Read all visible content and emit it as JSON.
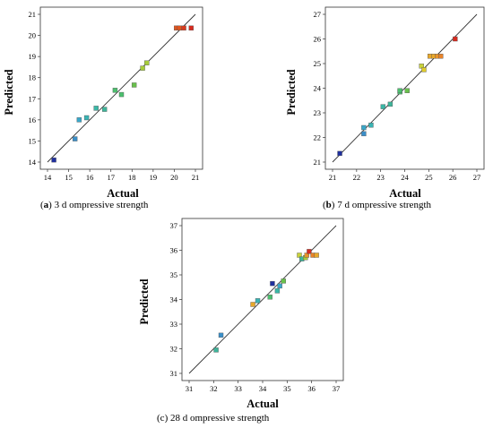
{
  "chart_data": [
    {
      "type": "scatter",
      "caption_prefix": "(",
      "caption_letter": "a",
      "caption_text": ") 3 d ompressive strength",
      "caption_letter_bold": true,
      "xlabel": "Actual",
      "ylabel": "Predicted",
      "xlim": [
        14,
        21
      ],
      "ylim": [
        14,
        21
      ],
      "xticks": [
        "14",
        "15",
        "16",
        "17",
        "18",
        "19",
        "20",
        "21"
      ],
      "yticks": [
        "14",
        "15",
        "16",
        "17",
        "18",
        "19",
        "20",
        "21"
      ],
      "line": [
        [
          14,
          14
        ],
        [
          21,
          21
        ]
      ],
      "points": [
        {
          "x": 14.3,
          "y": 14.1,
          "color": "#1f2f9e"
        },
        {
          "x": 15.3,
          "y": 15.1,
          "color": "#3a8fc9"
        },
        {
          "x": 15.5,
          "y": 16.0,
          "color": "#39a7c9"
        },
        {
          "x": 15.85,
          "y": 16.1,
          "color": "#39b3b3"
        },
        {
          "x": 16.3,
          "y": 16.55,
          "color": "#3ab7a6"
        },
        {
          "x": 16.7,
          "y": 16.5,
          "color": "#3eb59a"
        },
        {
          "x": 17.2,
          "y": 17.4,
          "color": "#4cbf6e"
        },
        {
          "x": 17.5,
          "y": 17.2,
          "color": "#4cbf6e"
        },
        {
          "x": 18.1,
          "y": 17.65,
          "color": "#69c14c"
        },
        {
          "x": 18.5,
          "y": 18.45,
          "color": "#a6cc3a"
        },
        {
          "x": 18.7,
          "y": 18.7,
          "color": "#a6cc3a"
        },
        {
          "x": 20.1,
          "y": 20.35,
          "color": "#e0551f"
        },
        {
          "x": 20.25,
          "y": 20.35,
          "color": "#e0551f"
        },
        {
          "x": 20.45,
          "y": 20.35,
          "color": "#d73a1f"
        },
        {
          "x": 20.8,
          "y": 20.35,
          "color": "#d72a1f"
        }
      ]
    },
    {
      "type": "scatter",
      "caption_prefix": "(",
      "caption_letter": "b",
      "caption_text": ") 7 d ompressive strength",
      "caption_letter_bold": true,
      "xlabel": "Actual",
      "ylabel": "Predicted",
      "xlim": [
        21,
        27
      ],
      "ylim": [
        21,
        27
      ],
      "xticks": [
        "21",
        "22",
        "23",
        "24",
        "25",
        "26",
        "27"
      ],
      "yticks": [
        "21",
        "22",
        "23",
        "24",
        "25",
        "26",
        "27"
      ],
      "line": [
        [
          21,
          21
        ],
        [
          27,
          27
        ]
      ],
      "points": [
        {
          "x": 21.3,
          "y": 21.35,
          "color": "#1f2f9e"
        },
        {
          "x": 22.3,
          "y": 22.15,
          "color": "#3a8fc9"
        },
        {
          "x": 22.3,
          "y": 22.4,
          "color": "#39a7c9"
        },
        {
          "x": 22.6,
          "y": 22.5,
          "color": "#39b3b3"
        },
        {
          "x": 23.1,
          "y": 23.25,
          "color": "#3ab7a6"
        },
        {
          "x": 23.4,
          "y": 23.35,
          "color": "#3eb59a"
        },
        {
          "x": 23.8,
          "y": 23.85,
          "color": "#4cbf6e"
        },
        {
          "x": 23.8,
          "y": 23.9,
          "color": "#4cbf6e"
        },
        {
          "x": 24.1,
          "y": 23.9,
          "color": "#69c14c"
        },
        {
          "x": 24.7,
          "y": 24.9,
          "color": "#c9d23a"
        },
        {
          "x": 24.8,
          "y": 24.75,
          "color": "#e0cc2a"
        },
        {
          "x": 25.05,
          "y": 25.3,
          "color": "#e8a82a"
        },
        {
          "x": 25.2,
          "y": 25.3,
          "color": "#e8a82a"
        },
        {
          "x": 25.35,
          "y": 25.3,
          "color": "#e8942a"
        },
        {
          "x": 25.5,
          "y": 25.3,
          "color": "#e8842a"
        },
        {
          "x": 26.1,
          "y": 26.0,
          "color": "#d72a1f"
        }
      ]
    },
    {
      "type": "scatter",
      "caption_prefix": "(",
      "caption_letter": "c",
      "caption_text": ") 28 d ompressive strength",
      "caption_letter_bold": false,
      "xlabel": "Actual",
      "ylabel": "Predicted",
      "xlim": [
        31,
        37
      ],
      "ylim": [
        31,
        37
      ],
      "xticks": [
        "31",
        "32",
        "33",
        "34",
        "35",
        "36",
        "37"
      ],
      "yticks": [
        "31",
        "32",
        "33",
        "34",
        "35",
        "36",
        "37"
      ],
      "line": [
        [
          31,
          31
        ],
        [
          37,
          37
        ]
      ],
      "points": [
        {
          "x": 32.1,
          "y": 31.95,
          "color": "#3eb59a"
        },
        {
          "x": 32.3,
          "y": 32.55,
          "color": "#3a8fc9"
        },
        {
          "x": 33.6,
          "y": 33.8,
          "color": "#e8a82a"
        },
        {
          "x": 33.8,
          "y": 33.95,
          "color": "#39b3b3"
        },
        {
          "x": 34.3,
          "y": 34.1,
          "color": "#4cbf6e"
        },
        {
          "x": 34.4,
          "y": 34.65,
          "color": "#1f2f9e"
        },
        {
          "x": 34.6,
          "y": 34.35,
          "color": "#3ab7a6"
        },
        {
          "x": 34.7,
          "y": 34.55,
          "color": "#39a7c9"
        },
        {
          "x": 34.85,
          "y": 34.75,
          "color": "#69c14c"
        },
        {
          "x": 35.5,
          "y": 35.8,
          "color": "#c9d23a"
        },
        {
          "x": 35.6,
          "y": 35.65,
          "color": "#3eb59a"
        },
        {
          "x": 35.75,
          "y": 35.7,
          "color": "#a6cc3a"
        },
        {
          "x": 35.8,
          "y": 35.8,
          "color": "#e8942a"
        },
        {
          "x": 35.9,
          "y": 35.95,
          "color": "#d72a1f"
        },
        {
          "x": 36.05,
          "y": 35.8,
          "color": "#e8842a"
        },
        {
          "x": 36.2,
          "y": 35.8,
          "color": "#e8a82a"
        }
      ]
    }
  ]
}
